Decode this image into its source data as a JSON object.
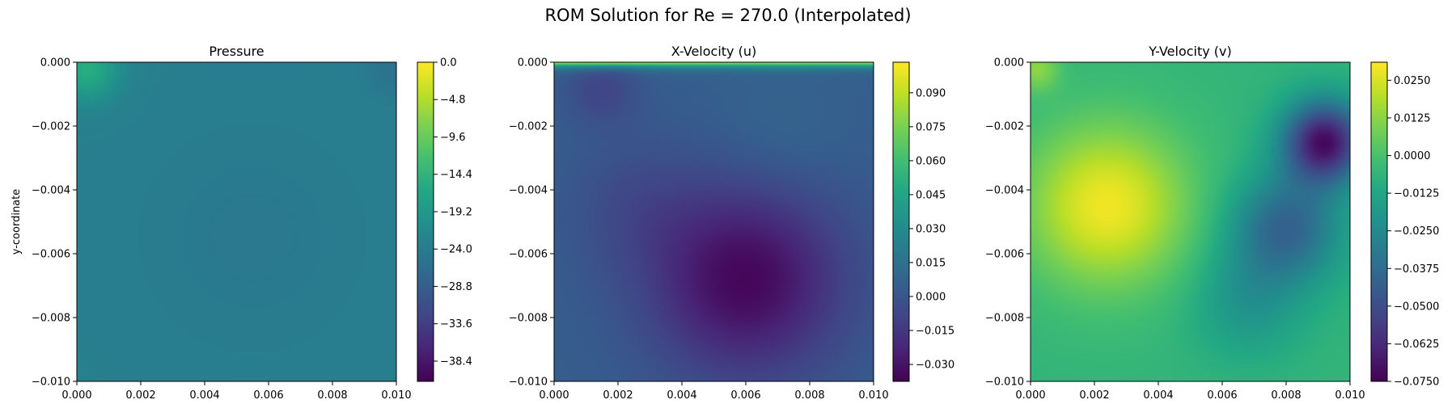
{
  "figure_title": "ROM Solution for Re = 270.0 (Interpolated)",
  "colors": {
    "viridis": [
      "#440154",
      "#482475",
      "#414487",
      "#355f8d",
      "#2a788e",
      "#21918c",
      "#22a884",
      "#44bf70",
      "#7ad151",
      "#bddf26",
      "#fde725"
    ]
  },
  "chart_data": [
    {
      "type": "heatmap",
      "title": "Pressure",
      "xlabel": "",
      "ylabel": "y-coordinate",
      "xlim": [
        0.0,
        0.01
      ],
      "ylim": [
        -0.01,
        0.0
      ],
      "x_ticks": [
        "0.000",
        "0.002",
        "0.004",
        "0.006",
        "0.008",
        "0.010"
      ],
      "y_ticks": [
        "0.000",
        "−0.002",
        "−0.004",
        "−0.006",
        "−0.008",
        "−0.010"
      ],
      "colorbar": {
        "min": -41.0,
        "max": 0.0,
        "ticks": [
          0.0,
          -4.8,
          -9.6,
          -14.4,
          -19.2,
          -24.0,
          -28.8,
          -33.6,
          -38.4
        ],
        "tick_labels": [
          "0.0",
          "−4.8",
          "−9.6",
          "−14.4",
          "−19.2",
          "−24.0",
          "−28.8",
          "−33.6",
          "−38.4"
        ]
      },
      "base_value": -23.5,
      "features": [
        {
          "x": 0.0003,
          "y": -0.0002,
          "sigma": 0.0007,
          "amp": 8.0
        },
        {
          "x": 0.0099,
          "y": -0.0002,
          "sigma": 0.0006,
          "amp": -2.0
        },
        {
          "x": 0.0055,
          "y": -0.0055,
          "sigma": 0.0025,
          "amp": -1.0
        }
      ]
    },
    {
      "type": "heatmap",
      "title": "X-Velocity (u)",
      "xlabel": "",
      "ylabel": "",
      "xlim": [
        0.0,
        0.01
      ],
      "ylim": [
        -0.01,
        0.0
      ],
      "x_ticks": [
        "0.000",
        "0.002",
        "0.004",
        "0.006",
        "0.008",
        "0.010"
      ],
      "y_ticks": [
        "0.000",
        "−0.002",
        "−0.004",
        "−0.006",
        "−0.008",
        "−0.010"
      ],
      "colorbar": {
        "min": -0.0375,
        "max": 0.1035,
        "ticks": [
          0.09,
          0.075,
          0.06,
          0.045,
          0.03,
          0.015,
          0.0,
          -0.015,
          -0.03
        ],
        "tick_labels": [
          "0.090",
          "0.075",
          "0.060",
          "0.045",
          "0.030",
          "0.015",
          "0.000",
          "−0.015",
          "−0.030"
        ]
      },
      "base_value": 0.004,
      "features": [
        {
          "x": 0.006,
          "y": -0.0068,
          "sigma": 0.0021,
          "amp": -0.039
        },
        {
          "x": 0.0015,
          "y": -0.0008,
          "sigma": 0.0008,
          "amp": -0.012
        },
        {
          "x": 0.0025,
          "y": -0.0045,
          "sigma": 0.0015,
          "amp": -0.008
        },
        {
          "x": 0.007,
          "y": -0.0025,
          "sigma": 0.0015,
          "amp": 0.005
        }
      ],
      "lid": {
        "value": 0.1,
        "thickness": 0.00012
      }
    },
    {
      "type": "heatmap",
      "title": "Y-Velocity (v)",
      "xlabel": "",
      "ylabel": "",
      "xlim": [
        0.0,
        0.01
      ],
      "ylim": [
        -0.01,
        0.0
      ],
      "x_ticks": [
        "0.000",
        "0.002",
        "0.004",
        "0.006",
        "0.008",
        "0.010"
      ],
      "y_ticks": [
        "0.000",
        "−0.002",
        "−0.004",
        "−0.006",
        "−0.008",
        "−0.010"
      ],
      "colorbar": {
        "min": -0.075,
        "max": 0.031,
        "ticks": [
          0.025,
          0.0125,
          0.0,
          -0.0125,
          -0.025,
          -0.0375,
          -0.05,
          -0.0625,
          -0.075
        ],
        "tick_labels": [
          "0.0250",
          "0.0125",
          "0.0000",
          "−0.0125",
          "−0.0250",
          "−0.0375",
          "−0.0500",
          "−0.0625",
          "−0.0750"
        ]
      },
      "base_value": -0.006,
      "features": [
        {
          "x": 0.0024,
          "y": -0.0045,
          "sigma": 0.0018,
          "amp": 0.035
        },
        {
          "x": 0.0092,
          "y": -0.0025,
          "sigma": 0.0009,
          "amp": -0.065
        },
        {
          "x": 0.008,
          "y": -0.0052,
          "sigma": 0.0012,
          "amp": -0.035
        },
        {
          "x": 0.0068,
          "y": -0.0075,
          "sigma": 0.0012,
          "amp": -0.014
        },
        {
          "x": 0.0002,
          "y": -0.0002,
          "sigma": 0.0005,
          "amp": 0.018
        }
      ]
    }
  ]
}
